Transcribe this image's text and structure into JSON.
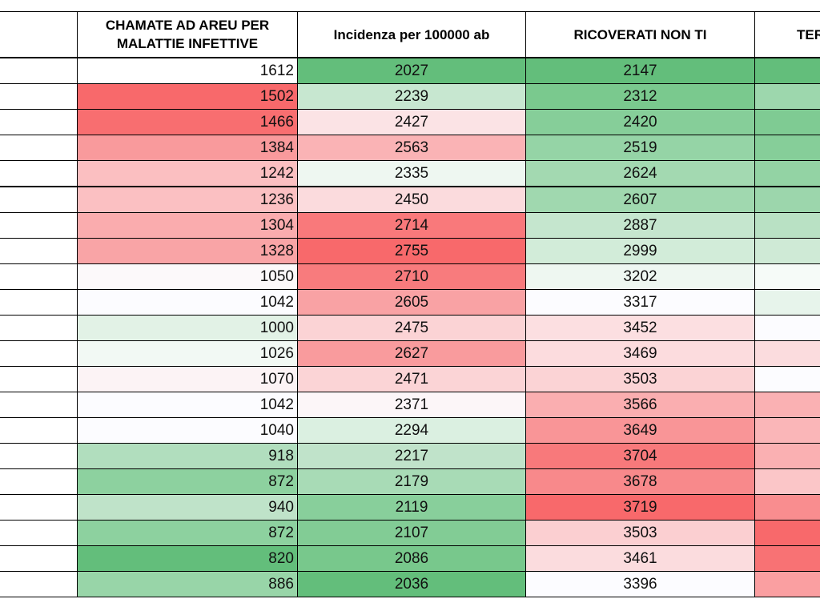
{
  "headers": {
    "col1": [
      "CHAMATE AD AREU PER",
      "MALATTIE INFETTIVE"
    ],
    "col2": "Incidenza per 100000 ab",
    "col3": "RICOVERATI NON TI",
    "col4": "TER"
  },
  "rows": [
    {
      "c1": "1612",
      "c2": "2027",
      "c3": "2147",
      "c1_color": "#ffffff",
      "c2_color": "#63be7b",
      "c3_color": "#63be7b",
      "c4_color": "#63be7b"
    },
    {
      "c1": "1502",
      "c2": "2239",
      "c3": "2312",
      "c1_color": "#f8696b",
      "c2_color": "#c7e7d0",
      "c3_color": "#7ac98e",
      "c4_color": "#9dd7ad"
    },
    {
      "c1": "1466",
      "c2": "2427",
      "c3": "2420",
      "c1_color": "#f86e70",
      "c2_color": "#fbe3e5",
      "c3_color": "#86ce99",
      "c4_color": "#7fcb93"
    },
    {
      "c1": "1384",
      "c2": "2563",
      "c3": "2519",
      "c1_color": "#f99a9c",
      "c2_color": "#fab3b5",
      "c3_color": "#95d4a6",
      "c4_color": "#86ce99"
    },
    {
      "c1": "1242",
      "c2": "2335",
      "c3": "2624",
      "c1_color": "#fbbfc1",
      "c2_color": "#eef7f1",
      "c3_color": "#a3d9b1",
      "c4_color": "#93d3a4"
    },
    {
      "c1": "1236",
      "c2": "2450",
      "c3": "2607",
      "c1_color": "#fbc0c2",
      "c2_color": "#fbdbdd",
      "c3_color": "#a0d8af",
      "c4_color": "#9cd6ac"
    },
    {
      "c1": "1304",
      "c2": "2714",
      "c3": "2887",
      "c1_color": "#faacae",
      "c2_color": "#f9797b",
      "c3_color": "#c5e6ce",
      "c4_color": "#b9e1c4"
    },
    {
      "c1": "1328",
      "c2": "2755",
      "c3": "2999",
      "c1_color": "#f9a4a6",
      "c2_color": "#f8696b",
      "c3_color": "#d2ecd9",
      "c4_color": "#cfead6"
    },
    {
      "c1": "1050",
      "c2": "2710",
      "c3": "3202",
      "c1_color": "#fcf9fa",
      "c2_color": "#f87b7d",
      "c3_color": "#eef7f1",
      "c4_color": "#f6fbf8"
    },
    {
      "c1": "1042",
      "c2": "2605",
      "c3": "3317",
      "c1_color": "#fcfcff",
      "c2_color": "#f9a2a4",
      "c3_color": "#fcfcff",
      "c4_color": "#e7f4eb"
    },
    {
      "c1": "1000",
      "c2": "2475",
      "c3": "3452",
      "c1_color": "#e2f2e6",
      "c2_color": "#fbd3d5",
      "c3_color": "#fcdfe1",
      "c4_color": "#fcfcff"
    },
    {
      "c1": "1026",
      "c2": "2627",
      "c3": "3469",
      "c1_color": "#f2f9f4",
      "c2_color": "#f99b9d",
      "c3_color": "#fcdcde",
      "c4_color": "#fbdcde"
    },
    {
      "c1": "1070",
      "c2": "2471",
      "c3": "3503",
      "c1_color": "#fcf3f5",
      "c2_color": "#fbd4d6",
      "c3_color": "#fbd3d5",
      "c4_color": "#fcfcff"
    },
    {
      "c1": "1042",
      "c2": "2371",
      "c3": "3566",
      "c1_color": "#fcfcff",
      "c2_color": "#fcf6f8",
      "c3_color": "#faaeb0",
      "c4_color": "#fab1b3"
    },
    {
      "c1": "1040",
      "c2": "2294",
      "c3": "3649",
      "c1_color": "#fcfcff",
      "c2_color": "#dbf0e1",
      "c3_color": "#f99597",
      "c4_color": "#fab6b8"
    },
    {
      "c1": "918",
      "c2": "2217",
      "c3": "3704",
      "c1_color": "#b1debe",
      "c2_color": "#c0e3ca",
      "c3_color": "#f8797b",
      "c4_color": "#fab0b2"
    },
    {
      "c1": "872",
      "c2": "2179",
      "c3": "3678",
      "c1_color": "#8dd19f",
      "c2_color": "#a8dbb6",
      "c3_color": "#f8898b",
      "c4_color": "#fbc6c8"
    },
    {
      "c1": "940",
      "c2": "2119",
      "c3": "3719",
      "c1_color": "#bfe3c9",
      "c2_color": "#88cf9b",
      "c3_color": "#f8696b",
      "c4_color": "#f98d8f"
    },
    {
      "c1": "872",
      "c2": "2107",
      "c3": "3503",
      "c1_color": "#8dd19f",
      "c2_color": "#82cc95",
      "c3_color": "#fbcfd1",
      "c4_color": "#f8696b"
    },
    {
      "c1": "820",
      "c2": "2086",
      "c3": "3461",
      "c1_color": "#63be7b",
      "c2_color": "#78c88c",
      "c3_color": "#fbdcde",
      "c4_color": "#f87274"
    },
    {
      "c1": "886",
      "c2": "2036",
      "c3": "3396",
      "c1_color": "#98d5a8",
      "c2_color": "#63be7b",
      "c3_color": "#fcfcff",
      "c4_color": "#fa9fa1"
    }
  ]
}
